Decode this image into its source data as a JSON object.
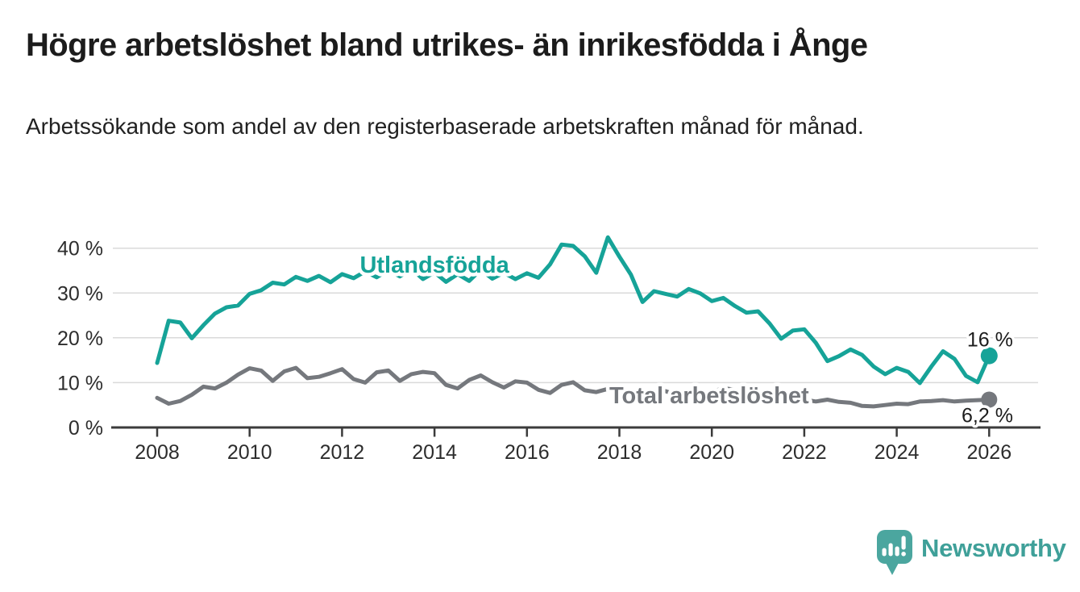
{
  "title": "Högre arbetslöshet bland utrikes- än inrikesfödda i Ånge",
  "subtitle": "Arbetssökande som andel av den registerbaserade arbetskraften månad för månad.",
  "branding": {
    "logo_text": "Newsworthy"
  },
  "colors": {
    "accent_teal": "#16a398",
    "series_gray": "#75787d",
    "logo_bubble": "#4ba69f",
    "logo_text": "#3fa099",
    "text": "#1c1c1c",
    "axis": "#3b3b3b",
    "axis_label": "#2d2d2d",
    "gridline": "#dadada",
    "background": "#ffffff"
  },
  "chart_data": {
    "type": "line",
    "title": "Högre arbetslöshet bland utrikes- än inrikesfödda i Ånge",
    "subtitle": "Arbetssökande som andel av den registerbaserade arbetskraften månad för månad.",
    "x_unit": "year (quarterly samples of monthly share)",
    "grid": true,
    "legend": "inline-labels",
    "ylim": [
      0,
      45
    ],
    "xlim": [
      2008,
      2026
    ],
    "yticks": [
      0,
      10,
      20,
      30,
      40
    ],
    "ytick_labels": [
      "0 %",
      "10 %",
      "20 %",
      "30 %",
      "40 %"
    ],
    "xticks": [
      2008,
      2010,
      2012,
      2014,
      2016,
      2018,
      2020,
      2022,
      2024,
      2026
    ],
    "xtick_labels": [
      "2008",
      "2010",
      "2012",
      "2014",
      "2016",
      "2018",
      "2020",
      "2022",
      "2024",
      "2026"
    ],
    "x": [
      2008.0,
      2008.25,
      2008.5,
      2008.75,
      2009.0,
      2009.25,
      2009.5,
      2009.75,
      2010.0,
      2010.25,
      2010.5,
      2010.75,
      2011.0,
      2011.25,
      2011.5,
      2011.75,
      2012.0,
      2012.25,
      2012.5,
      2012.75,
      2013.0,
      2013.25,
      2013.5,
      2013.75,
      2014.0,
      2014.25,
      2014.5,
      2014.75,
      2015.0,
      2015.25,
      2015.5,
      2015.75,
      2016.0,
      2016.25,
      2016.5,
      2016.75,
      2017.0,
      2017.25,
      2017.5,
      2017.75,
      2018.0,
      2018.25,
      2018.5,
      2018.75,
      2019.0,
      2019.25,
      2019.5,
      2019.75,
      2020.0,
      2020.25,
      2020.5,
      2020.75,
      2021.0,
      2021.25,
      2021.5,
      2021.75,
      2022.0,
      2022.25,
      2022.5,
      2022.75,
      2023.0,
      2023.25,
      2023.5,
      2023.75,
      2024.0,
      2024.25,
      2024.5,
      2024.75,
      2025.0,
      2025.25,
      2025.5,
      2025.75,
      2026.0
    ],
    "series": [
      {
        "name": "Utlandsfödda",
        "color": "#16a398",
        "last_value_label": "16 %",
        "values": [
          14.4,
          23.8,
          23.4,
          19.9,
          22.8,
          25.4,
          26.8,
          27.2,
          29.8,
          30.6,
          32.3,
          31.9,
          33.6,
          32.7,
          33.8,
          32.4,
          34.2,
          33.3,
          34.8,
          33.5,
          35.1,
          33.7,
          35.4,
          33.1,
          34.6,
          32.5,
          34.2,
          32.7,
          35.2,
          33.2,
          34.5,
          33.1,
          34.4,
          33.4,
          36.4,
          40.8,
          40.5,
          38.2,
          34.5,
          42.4,
          38.1,
          34.1,
          28.0,
          30.4,
          29.8,
          29.2,
          30.9,
          29.9,
          28.2,
          28.9,
          27.1,
          25.6,
          25.9,
          23.2,
          19.8,
          21.6,
          21.9,
          18.9,
          14.8,
          15.9,
          17.4,
          16.2,
          13.6,
          11.9,
          13.3,
          12.4,
          9.9,
          13.6,
          17.0,
          15.3,
          11.5,
          10.1,
          16.0
        ]
      },
      {
        "name": "Total arbetslöshet",
        "color": "#75787d",
        "last_value_label": "6,2 %",
        "values": [
          6.6,
          5.3,
          5.9,
          7.3,
          9.1,
          8.7,
          10.0,
          11.8,
          13.2,
          12.7,
          10.4,
          12.5,
          13.3,
          11.0,
          11.3,
          12.1,
          13.0,
          10.8,
          10.0,
          12.3,
          12.7,
          10.4,
          11.9,
          12.4,
          12.1,
          9.5,
          8.7,
          10.6,
          11.6,
          10.1,
          8.9,
          10.3,
          10.0,
          8.4,
          7.7,
          9.5,
          10.1,
          8.3,
          7.9,
          8.6,
          8.9,
          7.6,
          7.1,
          7.8,
          8.1,
          7.2,
          6.8,
          7.4,
          7.9,
          8.8,
          8.4,
          7.9,
          7.6,
          6.9,
          6.3,
          6.1,
          6.2,
          5.8,
          6.2,
          5.7,
          5.5,
          4.8,
          4.7,
          5.0,
          5.3,
          5.2,
          5.8,
          5.9,
          6.1,
          5.8,
          6.0,
          6.1,
          6.2
        ]
      }
    ],
    "end_dots": [
      {
        "series": 0,
        "year": 2026.0,
        "value": 16.0
      },
      {
        "series": 1,
        "year": 2026.0,
        "value": 6.2
      }
    ],
    "annotations": [
      {
        "kind": "series-label",
        "text": "Utlandsfödda",
        "year": 2014.0,
        "value": 34.5,
        "color": "#16a398"
      },
      {
        "kind": "series-label",
        "text": "Total arbetslöshet",
        "year": 2019.94,
        "value": 5.4,
        "color": "#75787d"
      },
      {
        "kind": "value-label",
        "text": "16 %",
        "year": 2026.02,
        "value": 18.1,
        "color": "#1c1c1c"
      },
      {
        "kind": "value-label",
        "text": "6,2 %",
        "year": 2025.96,
        "value": 1.2,
        "color": "#1c1c1c"
      }
    ]
  }
}
